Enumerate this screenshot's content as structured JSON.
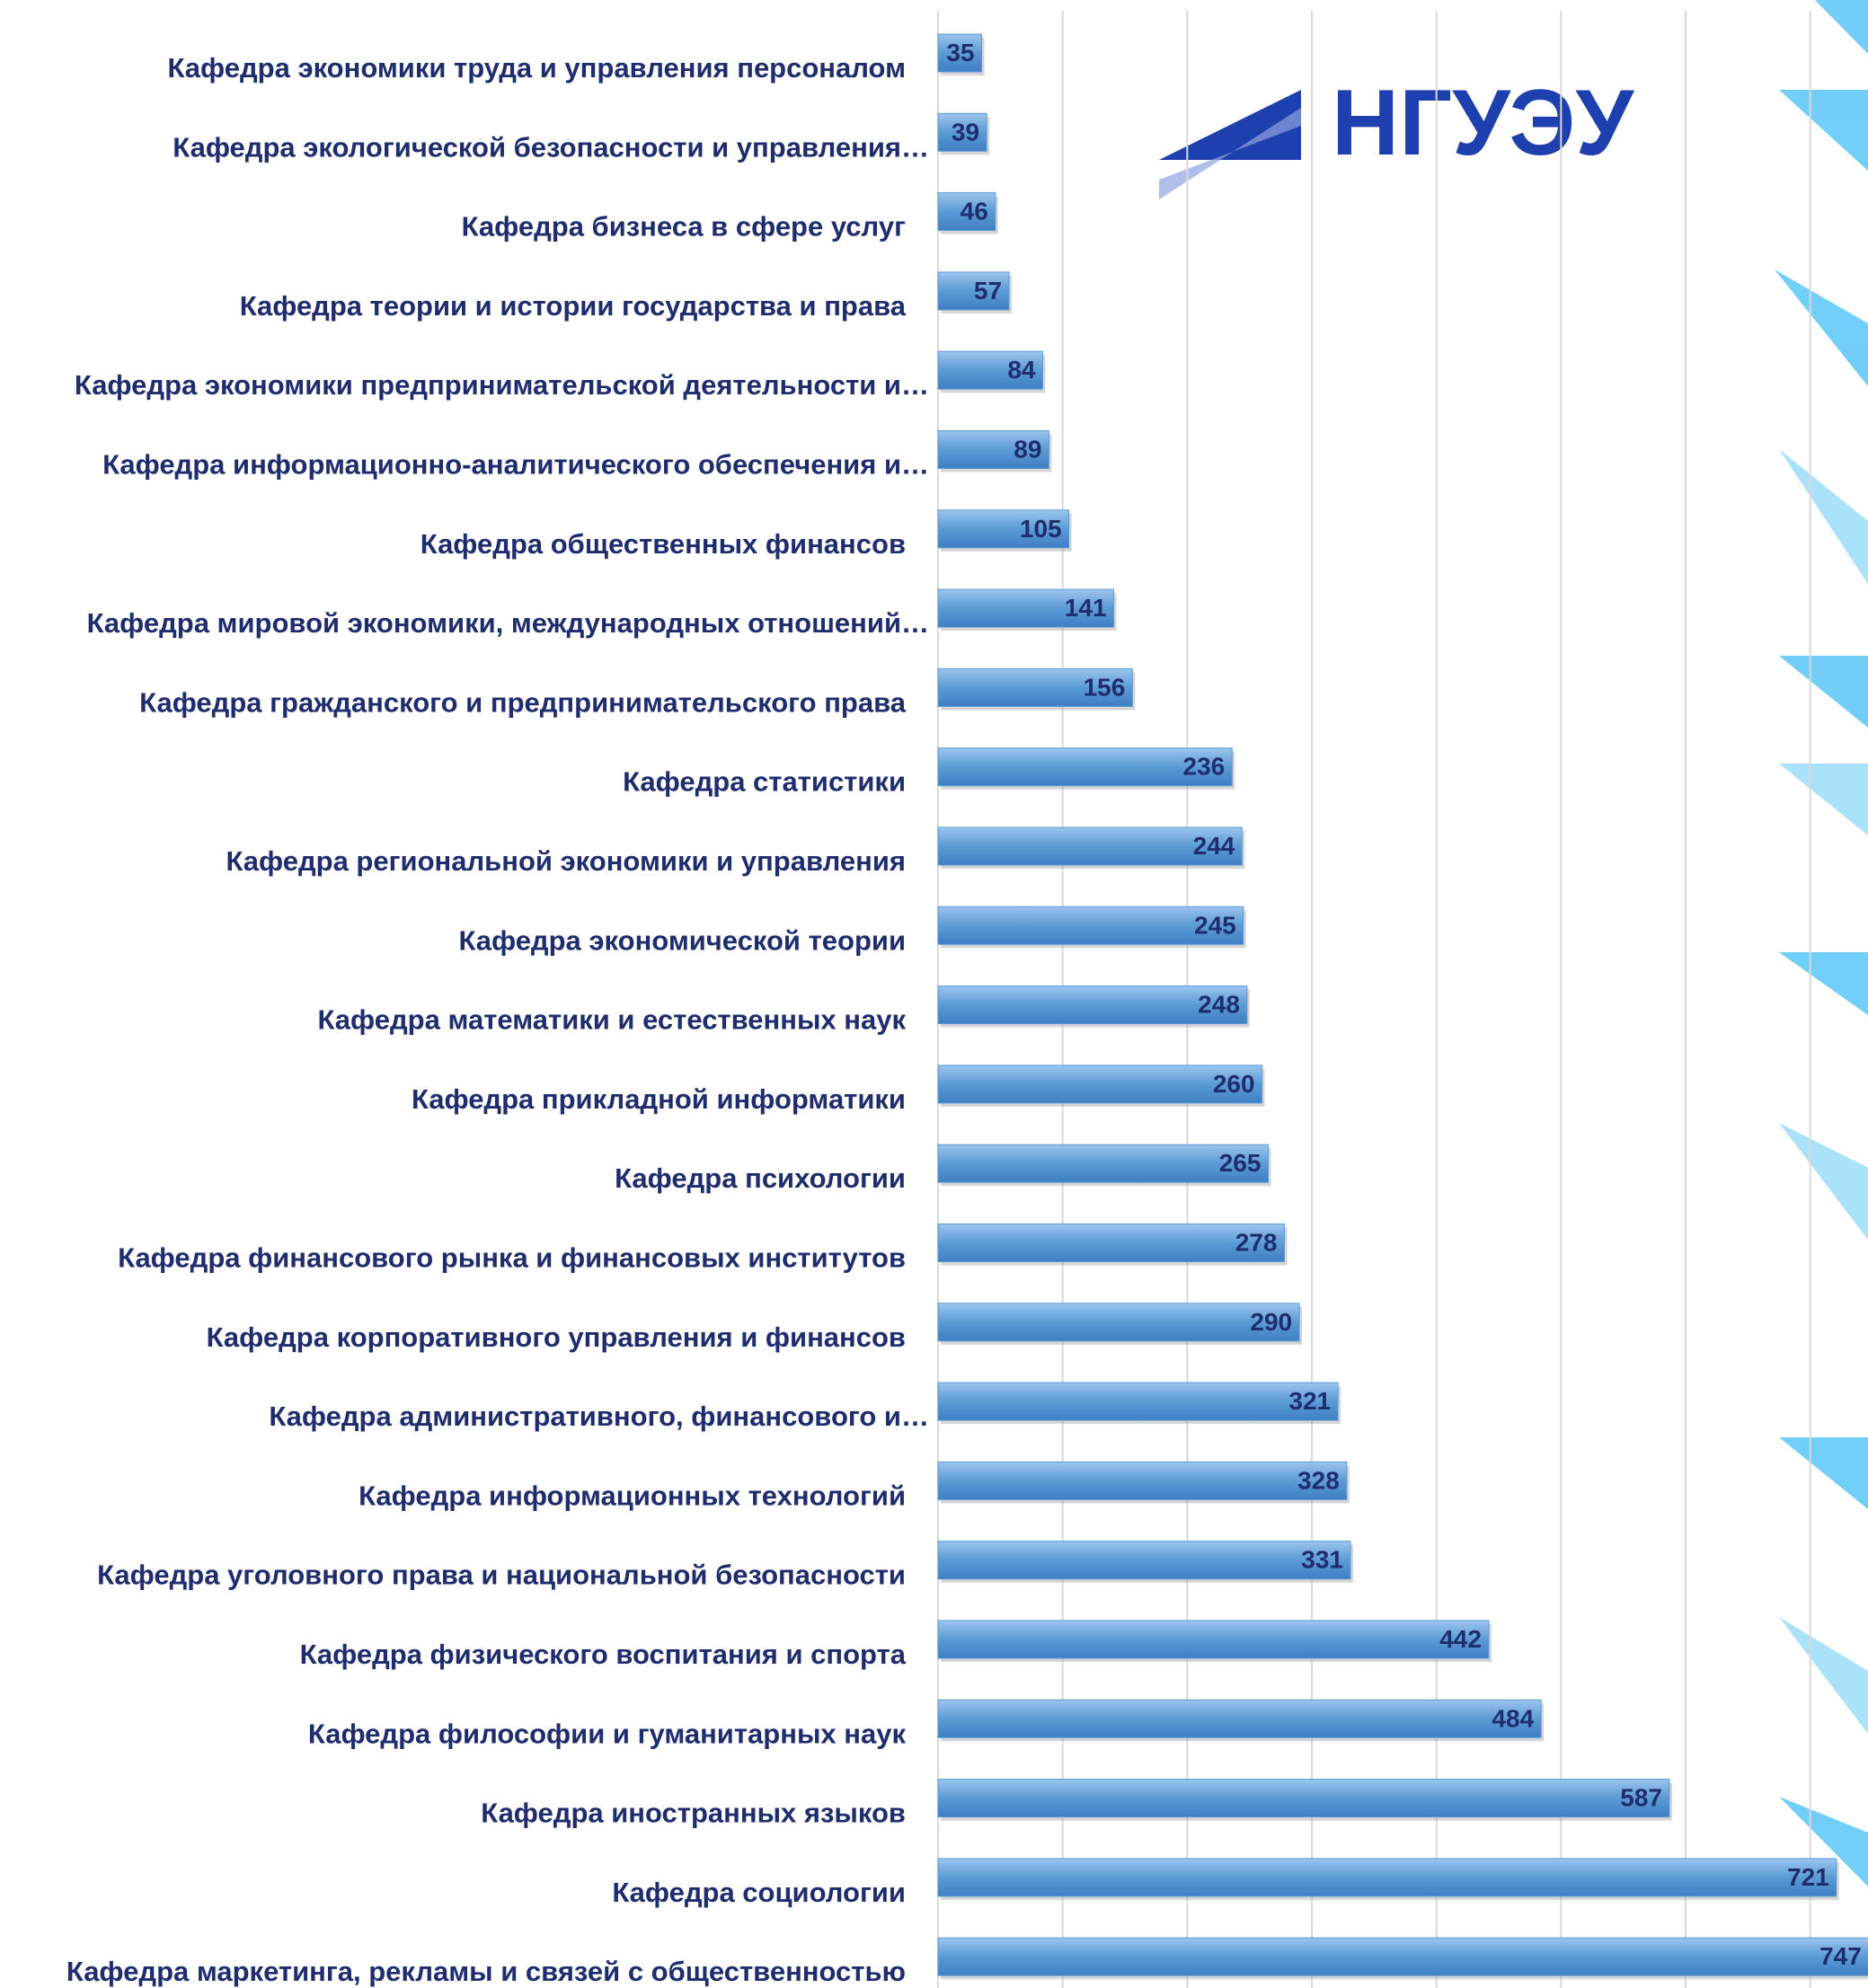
{
  "logo": {
    "text": "НГУЭУ"
  },
  "chart_data": {
    "type": "barh",
    "categories": [
      "Кафедра экономики труда и управления персоналом",
      "Кафедра экологической безопасности и управления…",
      "Кафедра бизнеса в сфере услуг",
      "Кафедра теории и истории государства и права",
      "Кафедра экономики предпринимательской деятельности и…",
      "Кафедра информационно-аналитического обеспечения и…",
      "Кафедра общественных финансов",
      "Кафедра мировой экономики, международных отношений…",
      "Кафедра гражданского и предпринимательского права",
      "Кафедра статистики",
      "Кафедра региональной экономики и управления",
      "Кафедра экономической теории",
      "Кафедра математики и естественных наук",
      "Кафедра прикладной информатики",
      "Кафедра психологии",
      "Кафедра финансового рынка и финансовых институтов",
      "Кафедра корпоративного управления и финансов",
      "Кафедра административного, финансового и…",
      "Кафедра информационных технологий",
      "Кафедра уголовного права и национальной безопасности",
      "Кафедра физического воспитания и спорта",
      "Кафедра философии и гуманитарных наук",
      "Кафедра иностранных языков",
      "Кафедра социологии",
      "Кафедра маркетинга, рекламы и связей с общественностью"
    ],
    "values": [
      35,
      39,
      46,
      57,
      84,
      89,
      105,
      141,
      156,
      236,
      244,
      245,
      248,
      260,
      265,
      278,
      290,
      321,
      328,
      331,
      442,
      484,
      587,
      721,
      747
    ],
    "color": "#5b9bd5",
    "xlim": [
      0,
      750
    ],
    "xticks": [
      0,
      100,
      200,
      300,
      400,
      500,
      600,
      700
    ],
    "grid": true
  }
}
